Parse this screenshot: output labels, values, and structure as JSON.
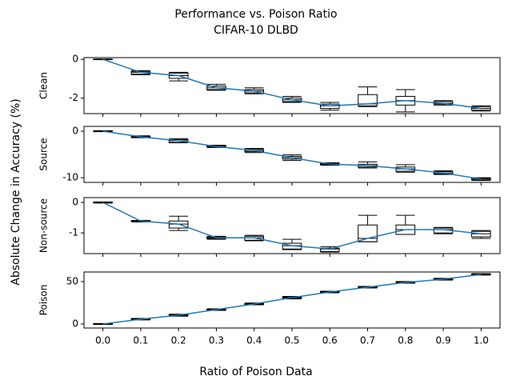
{
  "figure": {
    "title": "Performance vs. Poison Ratio",
    "subtitle": "CIFAR-10 DLBD",
    "x_label": "Ratio of Poison Data",
    "y_label": "Absolute Change in Accuracy (%)",
    "line_color": "#1f77b4"
  },
  "chart_data": [
    {
      "type": "box",
      "y_label": "Clean",
      "ylim": [
        -2.8,
        0.09
      ],
      "yticks": [
        0,
        -2
      ],
      "whislo": [
        -0.02,
        -0.8,
        -1.11,
        -1.6,
        -1.78,
        -2.22,
        -2.62,
        -2.44,
        -2.71,
        -2.36,
        -2.67
      ],
      "q1": [
        -0.01,
        -0.76,
        -0.98,
        -1.56,
        -1.73,
        -2.18,
        -2.53,
        -2.4,
        -2.36,
        -2.31,
        -2.62
      ],
      "med": [
        0,
        -0.67,
        -0.84,
        -1.47,
        -1.64,
        -2.09,
        -2.4,
        -2.3,
        -2.13,
        -2.27,
        -2.53
      ],
      "q3": [
        0.01,
        -0.62,
        -0.71,
        -1.38,
        -1.56,
        -2.0,
        -2.31,
        -1.82,
        -1.91,
        -2.18,
        -2.44
      ],
      "whishi": [
        0.02,
        -0.58,
        -0.67,
        -1.29,
        -1.47,
        -1.91,
        -2.22,
        -1.42,
        -1.56,
        -2.13,
        -2.4
      ]
    },
    {
      "type": "box",
      "y_label": "Source",
      "ylim": [
        -11.0,
        1.03
      ],
      "yticks": [
        0,
        -10
      ],
      "whislo": [
        -0.1,
        -1.4,
        -2.5,
        -3.5,
        -4.6,
        -6.3,
        -7.3,
        -7.9,
        -8.8,
        -9.3,
        -10.6
      ],
      "q1": [
        -0.05,
        -1.3,
        -2.4,
        -3.4,
        -4.4,
        -6.0,
        -7.2,
        -7.7,
        -8.6,
        -9.2,
        -10.5
      ],
      "med": [
        0,
        -1.2,
        -2.07,
        -3.28,
        -4.14,
        -5.7,
        -7.07,
        -7.4,
        -8.1,
        -8.97,
        -10.3
      ],
      "q3": [
        0.05,
        -1.1,
        -1.8,
        -3.1,
        -3.9,
        -5.4,
        -6.9,
        -7.1,
        -7.7,
        -8.7,
        -10.1
      ],
      "whishi": [
        0.1,
        -1.0,
        -1.6,
        -3.0,
        -3.7,
        -5.1,
        -6.8,
        -6.6,
        -7.2,
        -8.5,
        -10.0
      ]
    },
    {
      "type": "box",
      "y_label": "Non-source",
      "ylim": [
        -1.68,
        0.16
      ],
      "yticks": [
        0,
        -1
      ],
      "whislo": [
        -0.02,
        -0.64,
        -0.92,
        -1.21,
        -1.26,
        -1.55,
        -1.63,
        -1.29,
        -1.05,
        -1.03,
        -1.18
      ],
      "q1": [
        -0.01,
        -0.63,
        -0.84,
        -1.18,
        -1.24,
        -1.53,
        -1.61,
        -1.29,
        -1.05,
        -1.0,
        -1.13
      ],
      "med": [
        0,
        -0.61,
        -0.71,
        -1.16,
        -1.16,
        -1.42,
        -1.53,
        -1.18,
        -0.89,
        -0.89,
        -1.03
      ],
      "q3": [
        0.01,
        -0.6,
        -0.61,
        -1.13,
        -1.11,
        -1.34,
        -1.5,
        -0.74,
        -0.74,
        -0.84,
        -0.95
      ],
      "whishi": [
        0.02,
        -0.59,
        -0.45,
        -1.11,
        -1.08,
        -1.21,
        -1.45,
        -0.42,
        -0.42,
        -0.82,
        -0.92
      ]
    },
    {
      "type": "box",
      "y_label": "Poison",
      "ylim": [
        -4.7,
        61.3
      ],
      "yticks": [
        0,
        50
      ],
      "categories": [
        "0.0",
        "0.1",
        "0.2",
        "0.3",
        "0.4",
        "0.5",
        "0.6",
        "0.7",
        "0.8",
        "0.9",
        "1.0"
      ],
      "whislo": [
        -0.6,
        4.8,
        9.2,
        16.1,
        22.6,
        29.6,
        36.8,
        42.5,
        48.1,
        51.8,
        57.6
      ],
      "q1": [
        -0.4,
        5.1,
        9.6,
        16.5,
        23.0,
        30.2,
        37.1,
        42.9,
        48.5,
        52.2,
        58.0
      ],
      "med": [
        0,
        5.7,
        10.4,
        17,
        23.6,
        31.1,
        37.7,
        43.4,
        49,
        52.8,
        58.5
      ],
      "q3": [
        0.4,
        6.2,
        11.1,
        17.5,
        24.3,
        32.0,
        38.3,
        43.9,
        49.6,
        53.4,
        59.0
      ],
      "whishi": [
        0.6,
        6.6,
        11.6,
        17.9,
        24.8,
        32.6,
        38.7,
        44.3,
        50.1,
        53.9,
        59.4
      ]
    }
  ]
}
